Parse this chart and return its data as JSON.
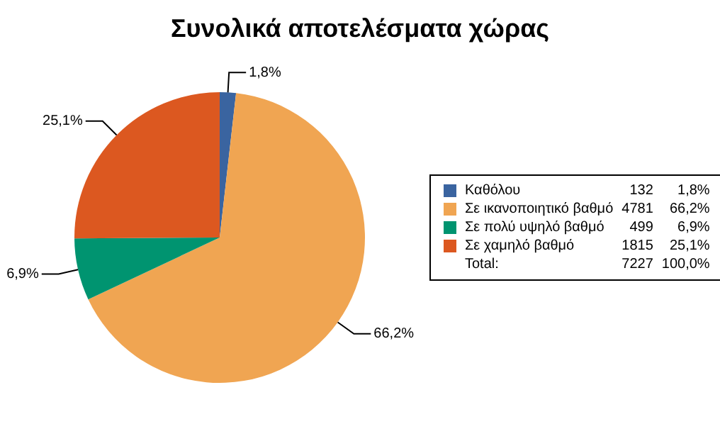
{
  "chart_data": {
    "type": "pie",
    "title": "Συνολικά αποτελέσματα χώρας",
    "categories": [
      "Καθόλου",
      "Σε ικανοποιητικό βαθμό",
      "Σε πολύ υψηλό βαθμό",
      "Σε χαμηλό βαθμό"
    ],
    "values": [
      1.8,
      66.2,
      6.9,
      25.1
    ],
    "colors": [
      "#3a64a0",
      "#f0a552",
      "#009470",
      "#dc5820"
    ],
    "value_labels": [
      "1,8%",
      "66,2%",
      "6,9%",
      "25,1%"
    ],
    "legend": "right",
    "annotations": [
      "132",
      "4781",
      "499",
      "1815",
      "Total:",
      "7227",
      "100,0%"
    ]
  }
}
